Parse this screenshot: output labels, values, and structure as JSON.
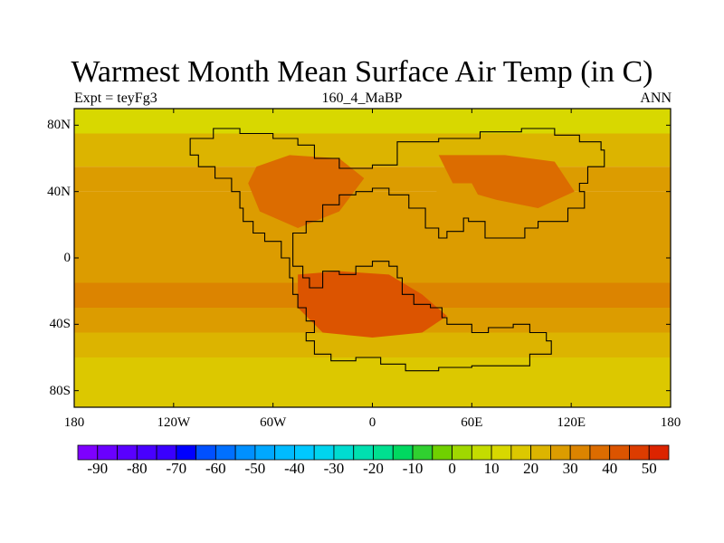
{
  "title": "Warmest Month Mean Surface Air Temp (in C)",
  "subtitle": {
    "left": "Expt = teyFg3",
    "center": "160_4_MaBP",
    "right": "ANN"
  },
  "map": {
    "projection": "cylindrical-equidistant",
    "lon_range": [
      -180,
      180
    ],
    "lat_range": [
      -90,
      90
    ],
    "lat_ticks": [
      {
        "value": 80,
        "label": "80N"
      },
      {
        "value": 40,
        "label": "40N"
      },
      {
        "value": 0,
        "label": "0"
      },
      {
        "value": -40,
        "label": "40S"
      },
      {
        "value": -80,
        "label": "80S"
      }
    ],
    "lon_ticks": [
      {
        "value": -180,
        "label": "180"
      },
      {
        "value": -120,
        "label": "120W"
      },
      {
        "value": -60,
        "label": "60W"
      },
      {
        "value": 0,
        "label": "0"
      },
      {
        "value": 60,
        "label": "60E"
      },
      {
        "value": 120,
        "label": "120E"
      },
      {
        "value": 180,
        "label": "180"
      }
    ],
    "field": "warmest month mean surface air temperature (°C)",
    "approx_field_bands": [
      {
        "lat_from": 90,
        "lat_to": 75,
        "value": 12
      },
      {
        "lat_from": 75,
        "lat_to": 55,
        "value": 20
      },
      {
        "lat_from": 55,
        "lat_to": 40,
        "value": 25
      },
      {
        "lat_from": 40,
        "lat_to": -15,
        "value": 29
      },
      {
        "lat_from": -15,
        "lat_to": -30,
        "value": 33
      },
      {
        "lat_from": -30,
        "lat_to": -45,
        "value": 28
      },
      {
        "lat_from": -45,
        "lat_to": -60,
        "value": 22
      },
      {
        "lat_from": -60,
        "lat_to": -90,
        "value": 16
      }
    ],
    "continent_outline": [
      [
        -110,
        72
      ],
      [
        -96,
        78
      ],
      [
        -80,
        75
      ],
      [
        -60,
        72
      ],
      [
        -45,
        68
      ],
      [
        -35,
        60
      ],
      [
        -20,
        54
      ],
      [
        0,
        56
      ],
      [
        15,
        70
      ],
      [
        40,
        72
      ],
      [
        65,
        76
      ],
      [
        90,
        78
      ],
      [
        110,
        74
      ],
      [
        125,
        70
      ],
      [
        138,
        65
      ],
      [
        140,
        55
      ],
      [
        130,
        45
      ],
      [
        125,
        40
      ],
      [
        128,
        30
      ],
      [
        118,
        22
      ],
      [
        100,
        18
      ],
      [
        92,
        12
      ],
      [
        80,
        12
      ],
      [
        68,
        22
      ],
      [
        58,
        24
      ],
      [
        55,
        16
      ],
      [
        45,
        12
      ],
      [
        40,
        18
      ],
      [
        32,
        30
      ],
      [
        22,
        38
      ],
      [
        10,
        42
      ],
      [
        0,
        40
      ],
      [
        -10,
        38
      ],
      [
        -20,
        32
      ],
      [
        -30,
        22
      ],
      [
        -40,
        15
      ],
      [
        -48,
        8
      ],
      [
        -48,
        -5
      ],
      [
        -42,
        -12
      ],
      [
        -38,
        -18
      ],
      [
        -30,
        -8
      ],
      [
        -20,
        -10
      ],
      [
        -10,
        -5
      ],
      [
        0,
        -2
      ],
      [
        10,
        -5
      ],
      [
        15,
        -12
      ],
      [
        18,
        -22
      ],
      [
        25,
        -28
      ],
      [
        35,
        -30
      ],
      [
        42,
        -36
      ],
      [
        45,
        -40
      ],
      [
        60,
        -45
      ],
      [
        70,
        -42
      ],
      [
        85,
        -40
      ],
      [
        95,
        -45
      ],
      [
        105,
        -50
      ],
      [
        108,
        -58
      ],
      [
        95,
        -65
      ],
      [
        60,
        -66
      ],
      [
        40,
        -68
      ],
      [
        20,
        -64
      ],
      [
        5,
        -60
      ],
      [
        -10,
        -62
      ],
      [
        -25,
        -58
      ],
      [
        -35,
        -50
      ],
      [
        -40,
        -45
      ],
      [
        -35,
        -38
      ],
      [
        -40,
        -30
      ],
      [
        -45,
        -22
      ],
      [
        -48,
        -12
      ],
      [
        -50,
        0
      ],
      [
        -55,
        10
      ],
      [
        -65,
        15
      ],
      [
        -72,
        22
      ],
      [
        -78,
        30
      ],
      [
        -80,
        40
      ],
      [
        -85,
        48
      ],
      [
        -95,
        55
      ],
      [
        -105,
        62
      ],
      [
        -110,
        72
      ]
    ],
    "hot_regions": [
      {
        "name": "laurasia-west",
        "points": [
          [
            -70,
            55
          ],
          [
            -50,
            62
          ],
          [
            -20,
            60
          ],
          [
            -5,
            48
          ],
          [
            -20,
            28
          ],
          [
            -45,
            18
          ],
          [
            -68,
            28
          ],
          [
            -75,
            45
          ]
        ],
        "value": 38
      },
      {
        "name": "laurasia-east",
        "points": [
          [
            40,
            62
          ],
          [
            80,
            62
          ],
          [
            110,
            58
          ],
          [
            122,
            40
          ],
          [
            100,
            30
          ],
          [
            75,
            35
          ],
          [
            50,
            42
          ]
        ],
        "value": 36
      },
      {
        "name": "gondwana",
        "points": [
          [
            -45,
            -10
          ],
          [
            -20,
            -8
          ],
          [
            10,
            -10
          ],
          [
            30,
            -22
          ],
          [
            45,
            -35
          ],
          [
            30,
            -45
          ],
          [
            0,
            -48
          ],
          [
            -30,
            -45
          ],
          [
            -45,
            -30
          ]
        ],
        "value": 40
      }
    ],
    "cool_spots": [
      {
        "name": "central-asia-basin",
        "points": [
          [
            35,
            25
          ],
          [
            55,
            20
          ],
          [
            68,
            30
          ],
          [
            60,
            45
          ],
          [
            40,
            45
          ]
        ],
        "value": 26
      }
    ]
  },
  "colorbar": {
    "min": -95,
    "max": 55,
    "step": 5,
    "colors": [
      "#7e00ff",
      "#6a00ff",
      "#5900ff",
      "#4800ff",
      "#3a00ff",
      "#0000ff",
      "#0050ff",
      "#0070ff",
      "#0090ff",
      "#00a8ff",
      "#00bbff",
      "#00c8ff",
      "#00d4ee",
      "#00dcd0",
      "#00e0b0",
      "#00e090",
      "#00d860",
      "#30d030",
      "#70d000",
      "#a0d800",
      "#c4dc00",
      "#d8d800",
      "#dcc800",
      "#dcb400",
      "#dc9c00",
      "#dc8400",
      "#dc6c00",
      "#dc5400",
      "#dc3c00",
      "#dc2400"
    ],
    "labels": [
      "-90",
      "-80",
      "-70",
      "-60",
      "-50",
      "-40",
      "-30",
      "-20",
      "-10",
      "0",
      "10",
      "20",
      "30",
      "40",
      "50"
    ]
  }
}
